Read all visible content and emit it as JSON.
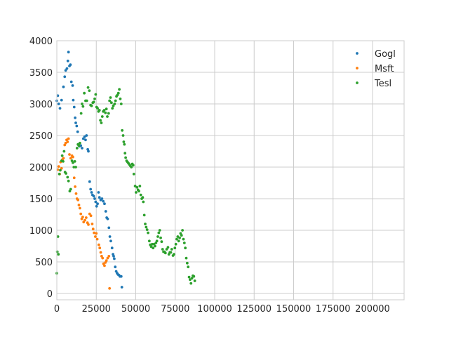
{
  "chart_data": {
    "type": "scatter",
    "xlim": [
      0,
      220000
    ],
    "ylim": [
      -100,
      4000
    ],
    "x_ticks": [
      0,
      25000,
      50000,
      75000,
      100000,
      125000,
      150000,
      175000,
      200000
    ],
    "y_ticks": [
      0,
      500,
      1000,
      1500,
      2000,
      2500,
      3000,
      3500,
      4000
    ],
    "grid": true,
    "legend_position": "top-right",
    "series": [
      {
        "name": "Gogl",
        "color": "#1f77b4",
        "points": [
          [
            0,
            3050
          ],
          [
            600,
            3130
          ],
          [
            1200,
            3000
          ],
          [
            2000,
            2930
          ],
          [
            3000,
            3060
          ],
          [
            4200,
            3270
          ],
          [
            5000,
            3430
          ],
          [
            5600,
            3530
          ],
          [
            6400,
            3560
          ],
          [
            7000,
            3680
          ],
          [
            7400,
            3820
          ],
          [
            8000,
            3600
          ],
          [
            8600,
            3620
          ],
          [
            9200,
            3350
          ],
          [
            10000,
            3290
          ],
          [
            10400,
            3060
          ],
          [
            11000,
            2950
          ],
          [
            11600,
            2780
          ],
          [
            12000,
            2700
          ],
          [
            12600,
            2650
          ],
          [
            13200,
            2560
          ],
          [
            13800,
            2350
          ],
          [
            14400,
            2330
          ],
          [
            15200,
            2340
          ],
          [
            16000,
            2300
          ],
          [
            16800,
            2450
          ],
          [
            17600,
            2480
          ],
          [
            18200,
            2430
          ],
          [
            18800,
            2500
          ],
          [
            19600,
            2280
          ],
          [
            20000,
            2250
          ],
          [
            20800,
            1770
          ],
          [
            21400,
            1650
          ],
          [
            22000,
            1600
          ],
          [
            22600,
            1560
          ],
          [
            23400,
            1540
          ],
          [
            24000,
            1500
          ],
          [
            24600,
            1450
          ],
          [
            25200,
            1380
          ],
          [
            25800,
            1420
          ],
          [
            26400,
            1600
          ],
          [
            27000,
            1520
          ],
          [
            27800,
            1480
          ],
          [
            28600,
            1500
          ],
          [
            29400,
            1460
          ],
          [
            30200,
            1420
          ],
          [
            31000,
            1300
          ],
          [
            31600,
            1200
          ],
          [
            32200,
            1180
          ],
          [
            33000,
            1040
          ],
          [
            33600,
            900
          ],
          [
            34200,
            830
          ],
          [
            35000,
            720
          ],
          [
            35600,
            620
          ],
          [
            36000,
            590
          ],
          [
            36400,
            550
          ],
          [
            37000,
            420
          ],
          [
            37600,
            350
          ],
          [
            38200,
            320
          ],
          [
            38800,
            300
          ],
          [
            39400,
            290
          ],
          [
            40000,
            270
          ],
          [
            40800,
            270
          ],
          [
            41200,
            100
          ]
        ]
      },
      {
        "name": "Msft",
        "color": "#ff7f0e",
        "points": [
          [
            600,
            1960
          ],
          [
            1200,
            2010
          ],
          [
            1800,
            1890
          ],
          [
            2400,
            2080
          ],
          [
            3000,
            1980
          ],
          [
            3600,
            2120
          ],
          [
            4200,
            2140
          ],
          [
            5000,
            2350
          ],
          [
            5600,
            2380
          ],
          [
            6200,
            2430
          ],
          [
            6800,
            2400
          ],
          [
            7400,
            2450
          ],
          [
            8000,
            2200
          ],
          [
            8800,
            2140
          ],
          [
            9600,
            2180
          ],
          [
            10200,
            2160
          ],
          [
            11000,
            1830
          ],
          [
            11600,
            1690
          ],
          [
            12200,
            1580
          ],
          [
            12800,
            1500
          ],
          [
            13400,
            1480
          ],
          [
            14000,
            1400
          ],
          [
            14600,
            1350
          ],
          [
            15200,
            1260
          ],
          [
            15800,
            1180
          ],
          [
            16400,
            1210
          ],
          [
            17000,
            1130
          ],
          [
            17800,
            1160
          ],
          [
            18600,
            1200
          ],
          [
            19400,
            1120
          ],
          [
            20000,
            1090
          ],
          [
            20800,
            1260
          ],
          [
            21600,
            1230
          ],
          [
            22400,
            1100
          ],
          [
            23000,
            1020
          ],
          [
            23600,
            960
          ],
          [
            24400,
            900
          ],
          [
            25000,
            950
          ],
          [
            25600,
            860
          ],
          [
            26600,
            770
          ],
          [
            27200,
            720
          ],
          [
            27800,
            650
          ],
          [
            28400,
            590
          ],
          [
            29000,
            560
          ],
          [
            29600,
            470
          ],
          [
            30200,
            440
          ],
          [
            30800,
            490
          ],
          [
            31400,
            520
          ],
          [
            32200,
            560
          ],
          [
            33000,
            590
          ],
          [
            33400,
            80
          ]
        ]
      },
      {
        "name": "Tesl",
        "color": "#2ca02c",
        "points": [
          [
            0,
            320
          ],
          [
            300,
            660
          ],
          [
            700,
            900
          ],
          [
            1000,
            620
          ],
          [
            1600,
            1890
          ],
          [
            2200,
            1950
          ],
          [
            3000,
            2100
          ],
          [
            3400,
            2180
          ],
          [
            4000,
            2090
          ],
          [
            4600,
            2250
          ],
          [
            5200,
            1920
          ],
          [
            5800,
            1900
          ],
          [
            6800,
            1840
          ],
          [
            7400,
            1780
          ],
          [
            8200,
            1620
          ],
          [
            8800,
            1650
          ],
          [
            9600,
            2100
          ],
          [
            10200,
            2070
          ],
          [
            10800,
            2000
          ],
          [
            11400,
            2090
          ],
          [
            12000,
            2000
          ],
          [
            12800,
            2300
          ],
          [
            13400,
            2360
          ],
          [
            14000,
            2340
          ],
          [
            14600,
            2380
          ],
          [
            15400,
            2850
          ],
          [
            16000,
            3000
          ],
          [
            16600,
            2960
          ],
          [
            17400,
            3170
          ],
          [
            18200,
            3050
          ],
          [
            19000,
            3050
          ],
          [
            19800,
            3260
          ],
          [
            20600,
            3210
          ],
          [
            21400,
            2980
          ],
          [
            22000,
            2970
          ],
          [
            22800,
            3020
          ],
          [
            23400,
            3030
          ],
          [
            24000,
            3080
          ],
          [
            24600,
            3150
          ],
          [
            25200,
            2950
          ],
          [
            25800,
            2930
          ],
          [
            26400,
            2880
          ],
          [
            27000,
            2900
          ],
          [
            27600,
            2740
          ],
          [
            28200,
            2700
          ],
          [
            28800,
            2800
          ],
          [
            29400,
            2880
          ],
          [
            30000,
            2900
          ],
          [
            30800,
            2860
          ],
          [
            31400,
            2920
          ],
          [
            32000,
            2800
          ],
          [
            32800,
            2850
          ],
          [
            33400,
            3050
          ],
          [
            34000,
            3100
          ],
          [
            34600,
            3020
          ],
          [
            35200,
            2930
          ],
          [
            35800,
            2970
          ],
          [
            36600,
            3000
          ],
          [
            37200,
            3050
          ],
          [
            37800,
            3120
          ],
          [
            38400,
            3140
          ],
          [
            39000,
            3170
          ],
          [
            39600,
            3230
          ],
          [
            40200,
            3080
          ],
          [
            40800,
            3000
          ],
          [
            41400,
            2580
          ],
          [
            42000,
            2500
          ],
          [
            42400,
            2400
          ],
          [
            42800,
            2360
          ],
          [
            43200,
            2220
          ],
          [
            43600,
            2150
          ],
          [
            44200,
            2100
          ],
          [
            44800,
            2080
          ],
          [
            45400,
            2060
          ],
          [
            46000,
            2040
          ],
          [
            46600,
            2020
          ],
          [
            47200,
            2000
          ],
          [
            47800,
            2050
          ],
          [
            48400,
            2030
          ],
          [
            48800,
            1890
          ],
          [
            49600,
            1700
          ],
          [
            50200,
            1600
          ],
          [
            50800,
            1680
          ],
          [
            51400,
            1640
          ],
          [
            52000,
            1620
          ],
          [
            52600,
            1700
          ],
          [
            53200,
            1560
          ],
          [
            53800,
            1500
          ],
          [
            54400,
            1520
          ],
          [
            54800,
            1450
          ],
          [
            55400,
            1240
          ],
          [
            56000,
            1100
          ],
          [
            56600,
            1050
          ],
          [
            57200,
            1010
          ],
          [
            57800,
            960
          ],
          [
            58600,
            830
          ],
          [
            59200,
            770
          ],
          [
            59800,
            740
          ],
          [
            60400,
            780
          ],
          [
            61000,
            720
          ],
          [
            61600,
            780
          ],
          [
            62200,
            750
          ],
          [
            62800,
            800
          ],
          [
            63400,
            830
          ],
          [
            64000,
            900
          ],
          [
            64600,
            960
          ],
          [
            65200,
            1000
          ],
          [
            65800,
            880
          ],
          [
            66400,
            820
          ],
          [
            67000,
            700
          ],
          [
            67600,
            660
          ],
          [
            68200,
            660
          ],
          [
            68800,
            640
          ],
          [
            69600,
            700
          ],
          [
            70400,
            730
          ],
          [
            71000,
            620
          ],
          [
            71600,
            650
          ],
          [
            72200,
            650
          ],
          [
            72800,
            700
          ],
          [
            73600,
            600
          ],
          [
            74200,
            620
          ],
          [
            74800,
            720
          ],
          [
            75400,
            780
          ],
          [
            76000,
            860
          ],
          [
            76600,
            900
          ],
          [
            77200,
            830
          ],
          [
            77800,
            880
          ],
          [
            78400,
            950
          ],
          [
            79000,
            920
          ],
          [
            79600,
            1000
          ],
          [
            80200,
            860
          ],
          [
            80800,
            800
          ],
          [
            81400,
            720
          ],
          [
            82000,
            560
          ],
          [
            82600,
            480
          ],
          [
            83200,
            420
          ],
          [
            83800,
            260
          ],
          [
            84400,
            220
          ],
          [
            85000,
            160
          ],
          [
            85600,
            240
          ],
          [
            86200,
            280
          ],
          [
            86800,
            270
          ],
          [
            87400,
            200
          ]
        ]
      }
    ]
  }
}
